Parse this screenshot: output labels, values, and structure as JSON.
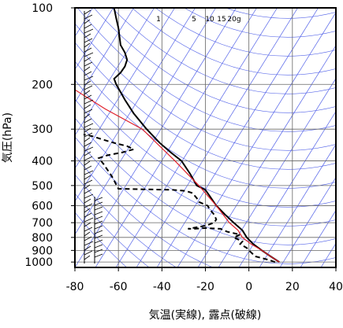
{
  "chart_data": {
    "type": "line",
    "title": "",
    "xlabel": "気温(実線), 露点(破線)",
    "ylabel": "気圧(hPa)",
    "x_ticks": [
      -80,
      -60,
      -40,
      -20,
      0,
      20,
      40
    ],
    "y_ticks": [
      100,
      200,
      300,
      400,
      500,
      600,
      700,
      800,
      900,
      1000
    ],
    "xlim": [
      -80,
      40
    ],
    "ylim": [
      1050,
      100
    ],
    "y_scale": "log",
    "grid": true,
    "mixing_ratio_labels": [
      "1",
      "5",
      "10",
      "15",
      "20g"
    ],
    "series": [
      {
        "id": "temperature",
        "style": "solid",
        "color": "#000000",
        "points": [
          [
            14,
            1000
          ],
          [
            10,
            950
          ],
          [
            6,
            900
          ],
          [
            2,
            850
          ],
          [
            -1,
            800
          ],
          [
            -3,
            750
          ],
          [
            -7,
            700
          ],
          [
            -11,
            650
          ],
          [
            -15,
            600
          ],
          [
            -18,
            550
          ],
          [
            -20,
            520
          ],
          [
            -24,
            500
          ],
          [
            -27,
            450
          ],
          [
            -31,
            400
          ],
          [
            -36,
            370
          ],
          [
            -41,
            340
          ],
          [
            -47,
            300
          ],
          [
            -53,
            260
          ],
          [
            -57,
            230
          ],
          [
            -61,
            200
          ],
          [
            -62,
            190
          ],
          [
            -59,
            180
          ],
          [
            -57,
            170
          ],
          [
            -56,
            160
          ],
          [
            -57,
            150
          ],
          [
            -59,
            140
          ],
          [
            -60,
            120
          ],
          [
            -61,
            110
          ],
          [
            -62,
            100
          ]
        ]
      },
      {
        "id": "dewpoint",
        "style": "dashed",
        "color": "#000000",
        "points": [
          [
            12,
            1000
          ],
          [
            9,
            980
          ],
          [
            3,
            950
          ],
          [
            0,
            900
          ],
          [
            -1,
            880
          ],
          [
            -4,
            850
          ],
          [
            -3,
            830
          ],
          [
            -7,
            800
          ],
          [
            -4,
            780
          ],
          [
            -10,
            760
          ],
          [
            -13,
            740
          ],
          [
            -20,
            735
          ],
          [
            -25,
            740
          ],
          [
            -28,
            740
          ],
          [
            -20,
            720
          ],
          [
            -16,
            700
          ],
          [
            -15,
            680
          ],
          [
            -16,
            650
          ],
          [
            -18,
            620
          ],
          [
            -19,
            600
          ],
          [
            -23,
            580
          ],
          [
            -24,
            560
          ],
          [
            -26,
            535
          ],
          [
            -29,
            525
          ],
          [
            -35,
            520
          ],
          [
            -60,
            515
          ],
          [
            -63,
            460
          ],
          [
            -67,
            410
          ],
          [
            -69,
            390
          ],
          [
            -65,
            380
          ],
          [
            -58,
            370
          ],
          [
            -53,
            360
          ],
          [
            -56,
            350
          ],
          [
            -62,
            340
          ],
          [
            -67,
            330
          ],
          [
            -72,
            320
          ],
          [
            -76,
            315
          ]
        ]
      },
      {
        "id": "parcel",
        "style": "solid",
        "color": "#e0202a",
        "points": [
          [
            14,
            1000
          ],
          [
            10,
            950
          ],
          [
            6,
            900
          ],
          [
            1,
            850
          ],
          [
            -3,
            800
          ],
          [
            -5,
            750
          ],
          [
            -9,
            700
          ],
          [
            -15,
            600
          ],
          [
            -23,
            500
          ],
          [
            -34,
            400
          ],
          [
            -49,
            300
          ],
          [
            -66,
            250
          ],
          [
            -80,
            210
          ]
        ]
      }
    ],
    "wind_barbs_present": true
  }
}
